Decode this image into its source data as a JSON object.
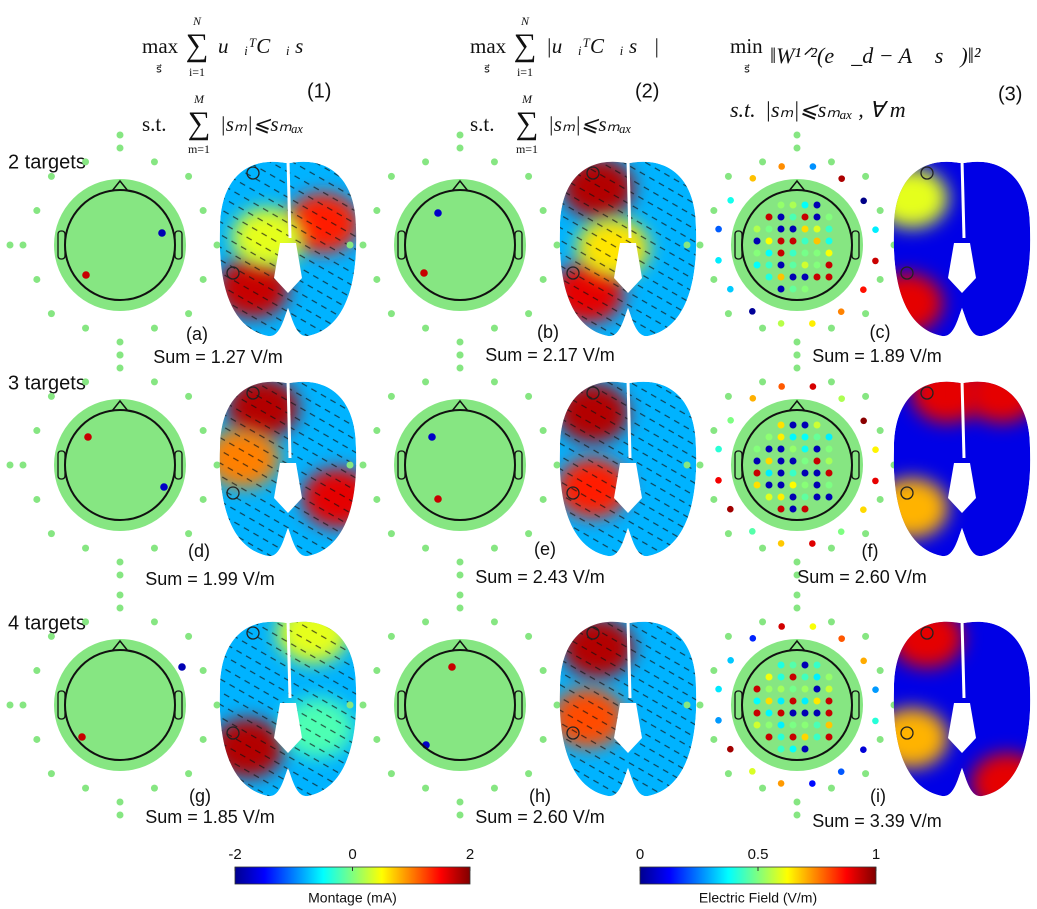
{
  "formulas": [
    {
      "objective": "max",
      "under": "s⃗",
      "sum": "∑",
      "upper": "N",
      "lower": "i=1",
      "expr": "u⃗ᵢᵀC⃗ᵢ s⃗",
      "number": "(1)",
      "constraint_prefix": "s.t.",
      "constraint_sum": "∑",
      "constraint_upper": "M",
      "constraint_lower": "m=1",
      "constraint": "|sₘ|⩽sₘₐₓ"
    },
    {
      "objective": "max",
      "under": "s⃗",
      "sum": "∑",
      "upper": "N",
      "lower": "i=1",
      "expr": "|u⃗ᵢᵀC⃗ᵢ s⃗|",
      "number": "(2)",
      "constraint_prefix": "s.t.",
      "constraint_sum": "∑",
      "constraint_upper": "M",
      "constraint_lower": "m=1",
      "constraint": "|sₘ|⩽sₘₐₓ"
    },
    {
      "objective": "min",
      "under": "s⃗",
      "expr": "‖W¹ᐟ²(e⃗_d − A⃗ s⃗)‖²",
      "number": "(3)",
      "constraint_prefix": "s.t.",
      "constraint": "|sₘ|⩽sₘₐₓ ,  ∀ m"
    }
  ],
  "rows": [
    "2 targets",
    "3 targets",
    "4 targets"
  ],
  "panels": [
    {
      "label": "(a)",
      "sum": "Sum = 1.27 V/m"
    },
    {
      "label": "(b)",
      "sum": "Sum = 2.17 V/m"
    },
    {
      "label": "(c)",
      "sum": "Sum = 1.89 V/m"
    },
    {
      "label": "(d)",
      "sum": "Sum = 1.99 V/m"
    },
    {
      "label": "(e)",
      "sum": "Sum = 2.43 V/m"
    },
    {
      "label": "(f)",
      "sum": "Sum = 2.60 V/m"
    },
    {
      "label": "(g)",
      "sum": "Sum = 1.85 V/m"
    },
    {
      "label": "(h)",
      "sum": "Sum = 2.60 V/m"
    },
    {
      "label": "(i)",
      "sum": "Sum = 3.39 V/m"
    }
  ],
  "colorbars": [
    {
      "title": "Montage (mA)",
      "lim": [
        -2,
        2
      ],
      "ticks": [
        -2,
        0,
        2
      ]
    },
    {
      "title": "Electric Field (V/m)",
      "lim": [
        0,
        1
      ],
      "ticks": [
        0,
        0.5,
        1
      ]
    }
  ]
}
